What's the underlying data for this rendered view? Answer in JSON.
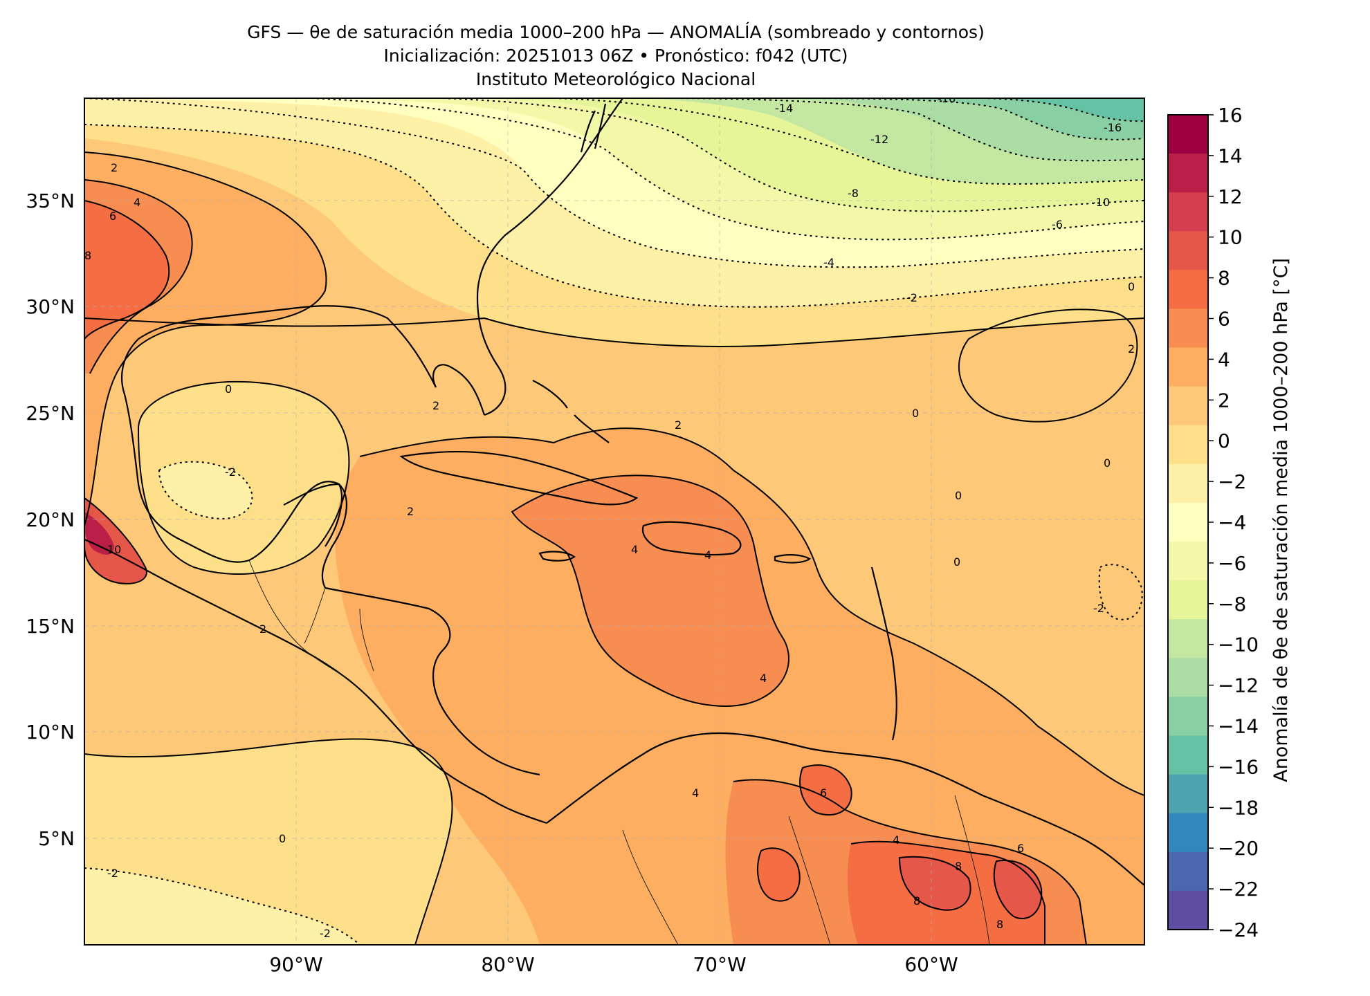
{
  "title": {
    "line1": "GFS — θe de saturación media 1000–200 hPa — ANOMALÍA (sombreado y contornos)",
    "line2": "Inicialización: 20251013 06Z   •   Pronóstico: f042 (UTC)",
    "line3": "Instituto Meteorológico Nacional"
  },
  "map": {
    "lon_range": [
      -99.5,
      -49.5
    ],
    "lat_range": [
      0.2,
      40.0
    ],
    "lon_ticks": [
      "90°W",
      "80°W",
      "70°W",
      "60°W"
    ],
    "lat_ticks": [
      "5°N",
      "10°N",
      "15°N",
      "20°N",
      "25°N",
      "30°N",
      "35°N"
    ],
    "gridlines": "dashed",
    "contour_labels": [
      "-16",
      "-16",
      "-14",
      "-12",
      "-10",
      "-8",
      "-6",
      "-4",
      "-2",
      "-2",
      "-2",
      "-2",
      "-2",
      "0",
      "0",
      "0",
      "0",
      "0",
      "0",
      "0",
      "2",
      "2",
      "2",
      "2",
      "2",
      "2",
      "4",
      "4",
      "4",
      "4",
      "4",
      "4",
      "6",
      "6",
      "6",
      "8",
      "8",
      "8",
      "8",
      "10"
    ]
  },
  "colorbar": {
    "label": "Anomalía de θe de saturación media 1000–200 hPa [°C]",
    "ticks": [
      "16",
      "14",
      "12",
      "10",
      "8",
      "6",
      "4",
      "2",
      "0",
      "−2",
      "−4",
      "−6",
      "−8",
      "−10",
      "−12",
      "−14",
      "−16",
      "−18",
      "−20",
      "−22",
      "−24"
    ],
    "colors_top_to_bottom": [
      "#9e0142",
      "#bb1f48",
      "#d53e4f",
      "#e55749",
      "#f46d43",
      "#f88d52",
      "#fdae61",
      "#fdc877",
      "#fee08b",
      "#fef0a6",
      "#ffffbf",
      "#f1f9a9",
      "#e6f598",
      "#c3e7a0",
      "#abdda4",
      "#88cfa4",
      "#66c2a5",
      "#4ea3b1",
      "#3288bd",
      "#4b67ad",
      "#5e4fa2"
    ]
  }
}
